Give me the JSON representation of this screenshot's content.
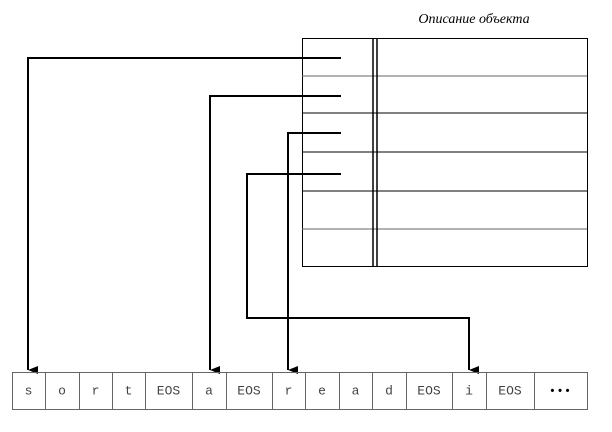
{
  "table": {
    "title": "Описание объекта"
  },
  "string_table": {
    "cells": [
      "s",
      "o",
      "r",
      "t",
      "EOS",
      "a",
      "EOS",
      "r",
      "e",
      "a",
      "d",
      "EOS",
      "i",
      "EOS",
      "•••"
    ]
  }
}
